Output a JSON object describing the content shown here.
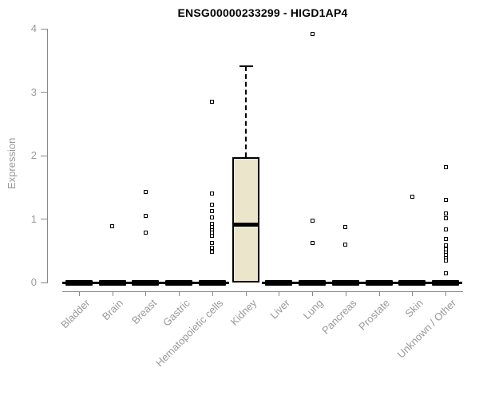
{
  "title": "ENSG00000233299 - HIGD1AP4",
  "chart_data": {
    "type": "boxplot",
    "title": "ENSG00000233299 - HIGD1AP4",
    "xlabel": "",
    "ylabel": "Expression",
    "ylim": [
      0,
      4
    ],
    "yticks": [
      0,
      1,
      2,
      3,
      4
    ],
    "grid": false,
    "legend": "none",
    "categories": [
      "Bladder",
      "Brain",
      "Breast",
      "Gastric",
      "Hematopoietic cells",
      "Kidney",
      "Liver",
      "Lung",
      "Pancreas",
      "Prostate",
      "Skin",
      "Unknown / Other"
    ],
    "boxes": [
      {
        "category": "Bladder",
        "q1": 0,
        "median": 0,
        "q3": 0,
        "whisker_low": 0,
        "whisker_high": 0,
        "outliers": []
      },
      {
        "category": "Brain",
        "q1": 0,
        "median": 0,
        "q3": 0,
        "whisker_low": 0,
        "whisker_high": 0,
        "outliers": [
          0.89
        ]
      },
      {
        "category": "Breast",
        "q1": 0,
        "median": 0,
        "q3": 0,
        "whisker_low": 0,
        "whisker_high": 0,
        "outliers": [
          1.43,
          1.05,
          0.78
        ]
      },
      {
        "category": "Gastric",
        "q1": 0,
        "median": 0,
        "q3": 0,
        "whisker_low": 0,
        "whisker_high": 0,
        "outliers": []
      },
      {
        "category": "Hematopoietic cells",
        "q1": 0,
        "median": 0,
        "q3": 0,
        "whisker_low": 0,
        "whisker_high": 0,
        "outliers": [
          2.85,
          1.4,
          1.23,
          1.13,
          1.02,
          0.93,
          0.88,
          0.83,
          0.78,
          0.74,
          0.62,
          0.55,
          0.49
        ]
      },
      {
        "category": "Kidney",
        "q1": 0,
        "median": 0.92,
        "q3": 1.97,
        "whisker_low": 0,
        "whisker_high": 3.41,
        "outliers": []
      },
      {
        "category": "Liver",
        "q1": 0,
        "median": 0,
        "q3": 0,
        "whisker_low": 0,
        "whisker_high": 0,
        "outliers": []
      },
      {
        "category": "Lung",
        "q1": 0,
        "median": 0,
        "q3": 0,
        "whisker_low": 0,
        "whisker_high": 0,
        "outliers": [
          3.92,
          0.97,
          0.62
        ]
      },
      {
        "category": "Pancreas",
        "q1": 0,
        "median": 0,
        "q3": 0,
        "whisker_low": 0,
        "whisker_high": 0,
        "outliers": [
          0.87,
          0.6
        ]
      },
      {
        "category": "Prostate",
        "q1": 0,
        "median": 0,
        "q3": 0,
        "whisker_low": 0,
        "whisker_high": 0,
        "outliers": []
      },
      {
        "category": "Skin",
        "q1": 0,
        "median": 0,
        "q3": 0,
        "whisker_low": 0,
        "whisker_high": 0,
        "outliers": [
          1.35
        ]
      },
      {
        "category": "Unknown / Other",
        "q1": 0,
        "median": 0,
        "q3": 0,
        "whisker_low": 0,
        "whisker_high": 0,
        "outliers": [
          1.82,
          1.3,
          1.09,
          1.01,
          0.84,
          0.68,
          0.59,
          0.52,
          0.47,
          0.43,
          0.38,
          0.34,
          0.14
        ]
      }
    ],
    "colors": {
      "box_fill": "#ebe6cb",
      "box_border": "#000000",
      "median": "#000000",
      "point": "#000000",
      "axis": "#888888",
      "tick_label": "#999999",
      "title": "#000000",
      "background": "#ffffff"
    }
  }
}
